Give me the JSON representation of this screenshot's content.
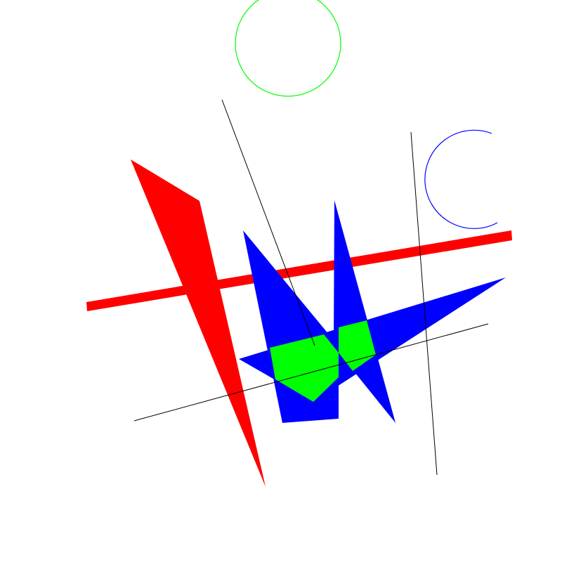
{
  "colors": {
    "background": "#ffffff",
    "red": "#ff0000",
    "blue": "#0000ff",
    "green": "#00ff00",
    "black": "#000000"
  }
}
